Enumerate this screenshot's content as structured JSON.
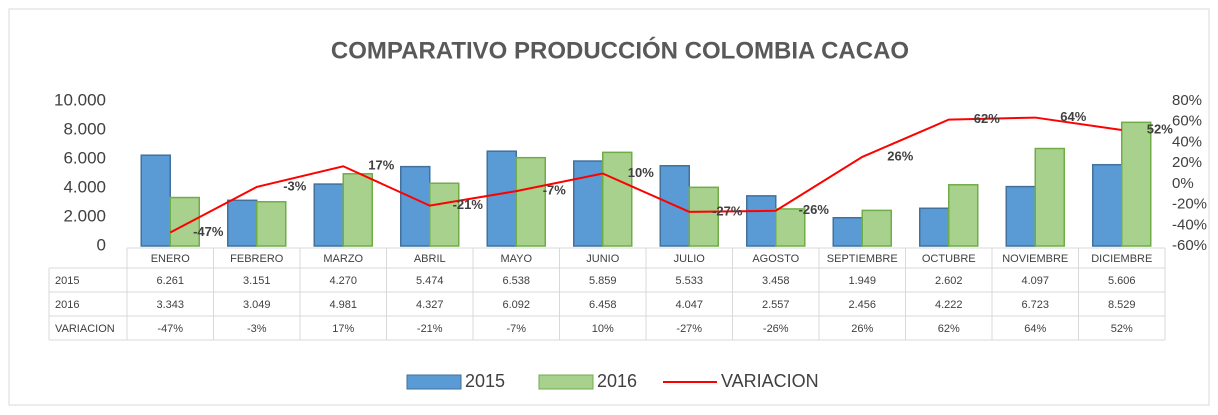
{
  "chart_data": {
    "type": "bar",
    "title": "COMPARATIVO PRODUCCIÓN COLOMBIA CACAO",
    "categories": [
      "ENERO",
      "FEBRERO",
      "MARZO",
      "ABRIL",
      "MAYO",
      "JUNIO",
      "JULIO",
      "AGOSTO",
      "SEPTIEMBRE",
      "OCTUBRE",
      "NOVIEMBRE",
      "DICIEMBRE"
    ],
    "series": [
      {
        "name": "2015",
        "color": "#5b9bd5",
        "values": [
          6261,
          3151,
          4270,
          5474,
          6538,
          5859,
          5533,
          3458,
          1949,
          2602,
          4097,
          5606
        ],
        "value_labels": [
          "6.261",
          "3.151",
          "4.270",
          "5.474",
          "6.538",
          "5.859",
          "5.533",
          "3.458",
          "1.949",
          "2.602",
          "4.097",
          "5.606"
        ]
      },
      {
        "name": "2016",
        "color": "#a9d18e",
        "values": [
          3343,
          3049,
          4981,
          4327,
          6092,
          6458,
          4047,
          2557,
          2456,
          4222,
          6723,
          8529
        ],
        "value_labels": [
          "3.343",
          "3.049",
          "4.981",
          "4.327",
          "6.092",
          "6.458",
          "4.047",
          "2.557",
          "2.456",
          "4.222",
          "6.723",
          "8.529"
        ]
      },
      {
        "name": "VARIACION",
        "type": "line",
        "axis": "y2",
        "color": "#ff0000",
        "values": [
          -47,
          -3,
          17,
          -21,
          -7,
          10,
          -27,
          -26,
          26,
          62,
          64,
          52
        ],
        "value_labels": [
          "-47%",
          "-3%",
          "17%",
          "-21%",
          "-7%",
          "10%",
          "-27%",
          "-26%",
          "26%",
          "62%",
          "64%",
          "52%"
        ]
      }
    ],
    "ylim": [
      0,
      10000
    ],
    "yticks": [
      0,
      {
        "value": 2000,
        "label": "2.000"
      },
      {
        "value": 4000,
        "label": "4.000"
      },
      {
        "value": 6000,
        "label": "6.000"
      },
      {
        "value": 8000,
        "label": "8.000"
      },
      {
        "value": 10000,
        "label": "10.000"
      }
    ],
    "y2lim": [
      -60,
      80
    ],
    "y2ticks": [
      {
        "value": -60,
        "label": "-60%"
      },
      {
        "value": -40,
        "label": "-40%"
      },
      {
        "value": -20,
        "label": "-20%"
      },
      {
        "value": 0,
        "label": "0%"
      },
      {
        "value": 20,
        "label": "20%"
      },
      {
        "value": 40,
        "label": "40%"
      },
      {
        "value": 60,
        "label": "60%"
      },
      {
        "value": 80,
        "label": "80%"
      }
    ],
    "legend": "bottom"
  }
}
